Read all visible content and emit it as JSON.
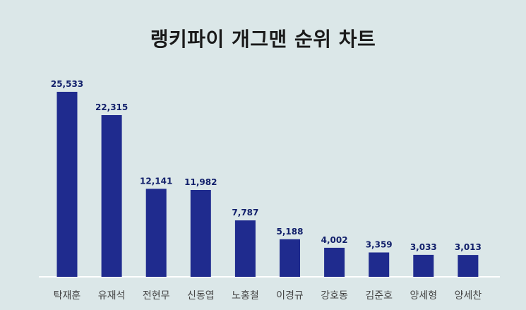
{
  "chart_data": {
    "type": "bar",
    "title": "랭키파이 개그맨 순위 차트",
    "categories": [
      "탁재훈",
      "유재석",
      "전현무",
      "신동엽",
      "노홍철",
      "이경규",
      "강호동",
      "김준호",
      "양세형",
      "양세찬"
    ],
    "values": [
      25533,
      22315,
      12141,
      11982,
      7787,
      5188,
      4002,
      3359,
      3033,
      3013
    ],
    "value_labels": [
      "25,533",
      "22,315",
      "12,141",
      "11,982",
      "7,787",
      "5,188",
      "4,002",
      "3,359",
      "3,033",
      "3,013"
    ],
    "xlabel": "",
    "ylabel": "",
    "ylim": [
      0,
      25533
    ],
    "grid": false,
    "legend": "none",
    "bar_color": "#1f2b8e"
  }
}
